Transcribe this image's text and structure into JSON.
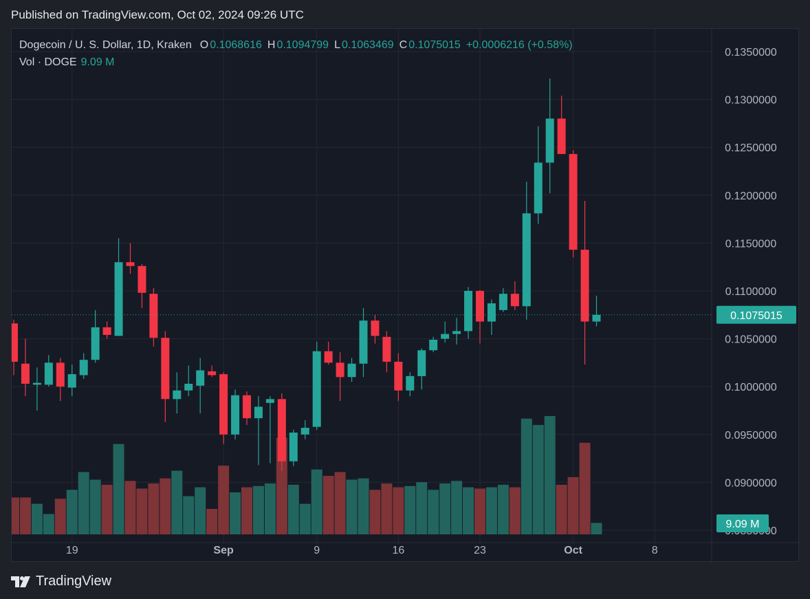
{
  "header": {
    "published": "Published on TradingView.com, Oct 02, 2024 09:26 UTC"
  },
  "legend": {
    "symbol": "Dogecoin / U. S. Dollar, 1D, Kraken",
    "o_label": "O",
    "o": "0.1068616",
    "h_label": "H",
    "h": "0.1094799",
    "l_label": "L",
    "l": "0.1063469",
    "c_label": "C",
    "c": "0.1075015",
    "change": "+0.0006216 (+0.58%)",
    "vol_label": "Vol · DOGE",
    "vol": "9.09 M"
  },
  "badges": {
    "price": "0.1075015",
    "volume": "9.09 M"
  },
  "footer": {
    "brand": "TradingView"
  },
  "colors": {
    "up": "#26a69a",
    "down": "#f23645",
    "vol_up": "#22655f",
    "vol_down": "#7f3438",
    "grid": "#242833",
    "text": "#b2b5be",
    "bg": "#161a25"
  },
  "chart_data": {
    "type": "candlestick",
    "price_axis": {
      "ticks": [
        "0.1350000",
        "0.1300000",
        "0.1250000",
        "0.1200000",
        "0.1150000",
        "0.1100000",
        "0.1050000",
        "0.1000000",
        "0.0950000",
        "0.0900000",
        "0.0850000"
      ],
      "tick_values": [
        0.135,
        0.13,
        0.125,
        0.12,
        0.115,
        0.11,
        0.105,
        0.1,
        0.095,
        0.09,
        0.085
      ]
    },
    "time_axis": {
      "labels": [
        {
          "text": "19",
          "index": 5
        },
        {
          "text": "Sep",
          "index": 18
        },
        {
          "text": "9",
          "index": 26
        },
        {
          "text": "16",
          "index": 33
        },
        {
          "text": "23",
          "index": 40
        },
        {
          "text": "Oct",
          "index": 48
        },
        {
          "text": "8",
          "index": 55
        }
      ]
    },
    "candles": [
      {
        "o": 0.1066,
        "h": 0.107,
        "l": 0.1012,
        "c": 0.1026,
        "v": 0.29
      },
      {
        "o": 0.1024,
        "h": 0.105,
        "l": 0.099,
        "c": 0.1003,
        "v": 0.29
      },
      {
        "o": 0.1002,
        "h": 0.102,
        "l": 0.0975,
        "c": 0.1004,
        "v": 0.24
      },
      {
        "o": 0.1002,
        "h": 0.1033,
        "l": 0.1,
        "c": 0.1025,
        "v": 0.16
      },
      {
        "o": 0.1025,
        "h": 0.103,
        "l": 0.0985,
        "c": 0.1,
        "v": 0.28
      },
      {
        "o": 0.0999,
        "h": 0.1023,
        "l": 0.099,
        "c": 0.1013,
        "v": 0.35
      },
      {
        "o": 0.1012,
        "h": 0.1035,
        "l": 0.1008,
        "c": 0.1028,
        "v": 0.49
      },
      {
        "o": 0.1028,
        "h": 0.108,
        "l": 0.1025,
        "c": 0.1062,
        "v": 0.43
      },
      {
        "o": 0.1062,
        "h": 0.1068,
        "l": 0.105,
        "c": 0.1054,
        "v": 0.39
      },
      {
        "o": 0.1053,
        "h": 0.1155,
        "l": 0.1053,
        "c": 0.113,
        "v": 0.71
      },
      {
        "o": 0.113,
        "h": 0.115,
        "l": 0.1118,
        "c": 0.1126,
        "v": 0.42
      },
      {
        "o": 0.1126,
        "h": 0.1128,
        "l": 0.1082,
        "c": 0.1098,
        "v": 0.36
      },
      {
        "o": 0.1097,
        "h": 0.1103,
        "l": 0.1042,
        "c": 0.1051,
        "v": 0.4
      },
      {
        "o": 0.1051,
        "h": 0.1058,
        "l": 0.0963,
        "c": 0.0987,
        "v": 0.44
      },
      {
        "o": 0.0987,
        "h": 0.1015,
        "l": 0.0972,
        "c": 0.0996,
        "v": 0.5
      },
      {
        "o": 0.0996,
        "h": 0.1022,
        "l": 0.099,
        "c": 0.1003,
        "v": 0.3
      },
      {
        "o": 0.1001,
        "h": 0.103,
        "l": 0.0972,
        "c": 0.1017,
        "v": 0.37
      },
      {
        "o": 0.1016,
        "h": 0.1022,
        "l": 0.101,
        "c": 0.1012,
        "v": 0.2
      },
      {
        "o": 0.1013,
        "h": 0.1015,
        "l": 0.094,
        "c": 0.095,
        "v": 0.54
      },
      {
        "o": 0.095,
        "h": 0.0997,
        "l": 0.0945,
        "c": 0.0991,
        "v": 0.33
      },
      {
        "o": 0.0991,
        "h": 0.0995,
        "l": 0.096,
        "c": 0.0967,
        "v": 0.37
      },
      {
        "o": 0.0967,
        "h": 0.099,
        "l": 0.0918,
        "c": 0.0979,
        "v": 0.38
      },
      {
        "o": 0.0983,
        "h": 0.099,
        "l": 0.092,
        "c": 0.0987,
        "v": 0.4
      },
      {
        "o": 0.0987,
        "h": 0.0993,
        "l": 0.0912,
        "c": 0.0922,
        "v": 0.76
      },
      {
        "o": 0.0922,
        "h": 0.0955,
        "l": 0.0917,
        "c": 0.0952,
        "v": 0.39
      },
      {
        "o": 0.095,
        "h": 0.0965,
        "l": 0.0945,
        "c": 0.0957,
        "v": 0.24
      },
      {
        "o": 0.0958,
        "h": 0.1047,
        "l": 0.0955,
        "c": 0.1037,
        "v": 0.51
      },
      {
        "o": 0.1037,
        "h": 0.1047,
        "l": 0.1023,
        "c": 0.1025,
        "v": 0.46
      },
      {
        "o": 0.1025,
        "h": 0.1036,
        "l": 0.0985,
        "c": 0.101,
        "v": 0.49
      },
      {
        "o": 0.101,
        "h": 0.103,
        "l": 0.1005,
        "c": 0.1024,
        "v": 0.43
      },
      {
        "o": 0.1024,
        "h": 0.1082,
        "l": 0.101,
        "c": 0.1069,
        "v": 0.44
      },
      {
        "o": 0.1069,
        "h": 0.1075,
        "l": 0.1045,
        "c": 0.1053,
        "v": 0.35
      },
      {
        "o": 0.1052,
        "h": 0.1058,
        "l": 0.1015,
        "c": 0.1026,
        "v": 0.4
      },
      {
        "o": 0.1026,
        "h": 0.1035,
        "l": 0.0985,
        "c": 0.0996,
        "v": 0.37
      },
      {
        "o": 0.0996,
        "h": 0.1015,
        "l": 0.099,
        "c": 0.1011,
        "v": 0.38
      },
      {
        "o": 0.1011,
        "h": 0.104,
        "l": 0.0997,
        "c": 0.1038,
        "v": 0.41
      },
      {
        "o": 0.1038,
        "h": 0.1052,
        "l": 0.1036,
        "c": 0.1049,
        "v": 0.35
      },
      {
        "o": 0.105,
        "h": 0.1068,
        "l": 0.1046,
        "c": 0.1055,
        "v": 0.4
      },
      {
        "o": 0.1055,
        "h": 0.1072,
        "l": 0.1044,
        "c": 0.1058,
        "v": 0.42
      },
      {
        "o": 0.1058,
        "h": 0.1104,
        "l": 0.105,
        "c": 0.11,
        "v": 0.37
      },
      {
        "o": 0.11,
        "h": 0.1101,
        "l": 0.1045,
        "c": 0.1068,
        "v": 0.36
      },
      {
        "o": 0.1068,
        "h": 0.1091,
        "l": 0.1054,
        "c": 0.1087,
        "v": 0.37
      },
      {
        "o": 0.108,
        "h": 0.1103,
        "l": 0.1078,
        "c": 0.1097,
        "v": 0.39
      },
      {
        "o": 0.1097,
        "h": 0.111,
        "l": 0.108,
        "c": 0.1084,
        "v": 0.37
      },
      {
        "o": 0.1084,
        "h": 0.1214,
        "l": 0.107,
        "c": 0.1181,
        "v": 0.91
      },
      {
        "o": 0.1181,
        "h": 0.1272,
        "l": 0.117,
        "c": 0.1234,
        "v": 0.86
      },
      {
        "o": 0.1234,
        "h": 0.1322,
        "l": 0.1202,
        "c": 0.128,
        "v": 0.93
      },
      {
        "o": 0.128,
        "h": 0.1304,
        "l": 0.1243,
        "c": 0.1243,
        "v": 0.39
      },
      {
        "o": 0.1243,
        "h": 0.1247,
        "l": 0.1135,
        "c": 0.1143,
        "v": 0.45
      },
      {
        "o": 0.1143,
        "h": 0.1194,
        "l": 0.1023,
        "c": 0.1068,
        "v": 0.72
      },
      {
        "o": 0.1068,
        "h": 0.1095,
        "l": 0.1063,
        "c": 0.1075,
        "v": 0.09
      }
    ]
  }
}
